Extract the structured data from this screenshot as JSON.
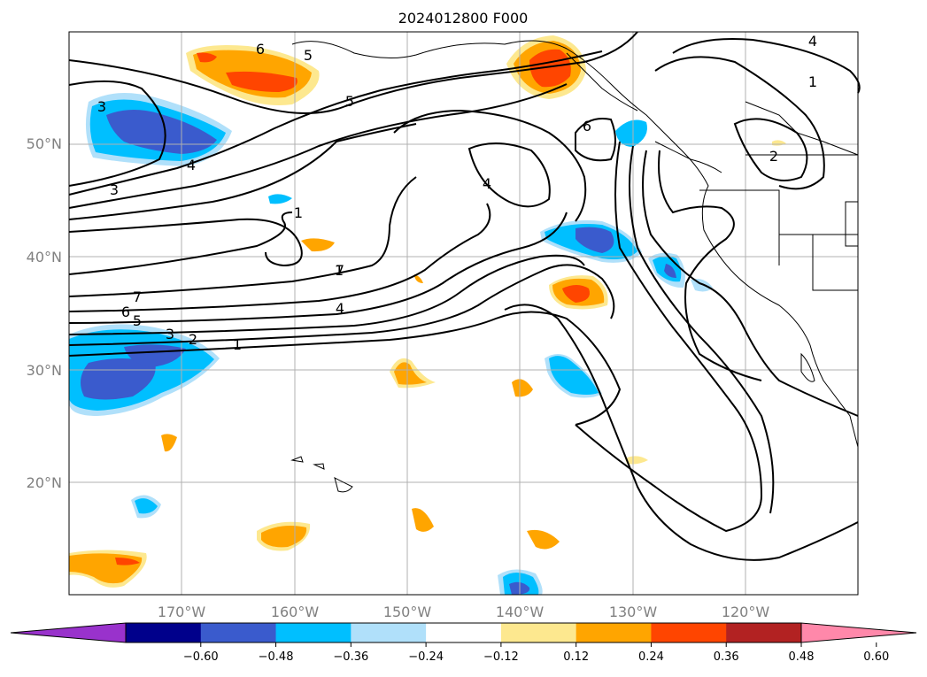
{
  "title": "2024012800 F000",
  "lat_labels": [
    "50°N",
    "40°N",
    "30°N",
    "20°N"
  ],
  "lon_labels": [
    "170°W",
    "160°W",
    "150°W",
    "140°W",
    "130°W",
    "120°W"
  ],
  "colorbar": {
    "ticks": [
      "−0.60",
      "−0.48",
      "−0.36",
      "−0.24",
      "−0.12",
      "0.12",
      "0.24",
      "0.36",
      "0.48",
      "0.60"
    ],
    "colors": [
      "#9932cc",
      "#00008b",
      "#3a5bcd",
      "#00bfff",
      "#b0e0fa",
      "#ffffff",
      "#fde88f",
      "#ffa500",
      "#ff4500",
      "#b22222",
      "#ff88aa"
    ]
  },
  "contour_labels": [
    "6",
    "5",
    "3",
    "5",
    "4",
    "1",
    "3",
    "4",
    "6",
    "4",
    "1",
    "2",
    "1",
    "7",
    "7",
    "6",
    "5",
    "3",
    "2",
    "1",
    "4"
  ]
}
